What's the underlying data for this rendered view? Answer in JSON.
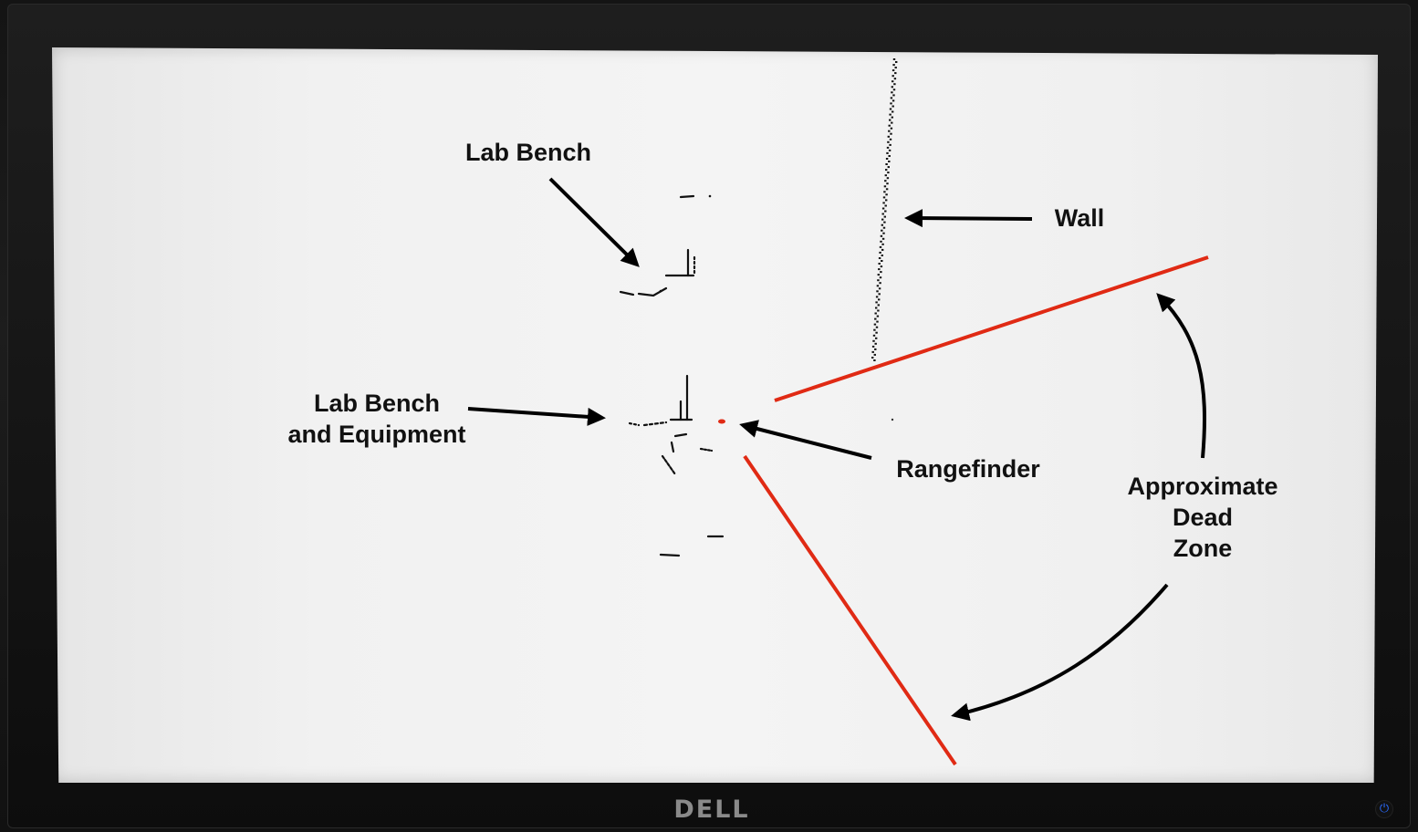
{
  "labels": {
    "lab_bench_top": "Lab Bench",
    "wall": "Wall",
    "lab_bench_equipment_line1": "Lab Bench",
    "lab_bench_equipment_line2": "and Equipment",
    "rangefinder": "Rangefinder",
    "dead_zone_line1": "Approximate",
    "dead_zone_line2": "Dead",
    "dead_zone_line3": "Zone"
  },
  "monitor": {
    "brand": "DELL",
    "power_icon": "power-icon"
  },
  "colors": {
    "dead_zone_boundary": "#e02a14",
    "scan_points": "#111111",
    "rangefinder_marker": "#e02a14",
    "screen_background": "#f2f2f2"
  }
}
